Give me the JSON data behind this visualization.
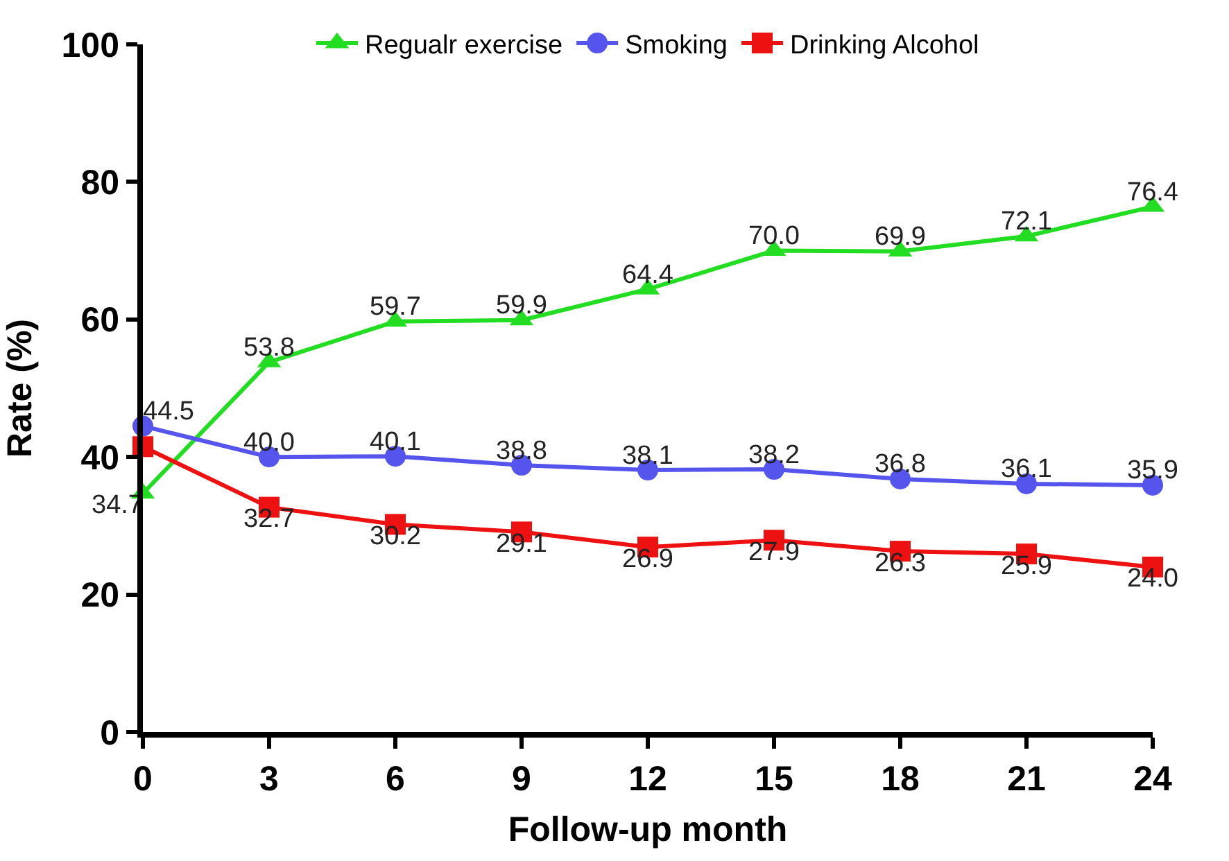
{
  "chart_data": {
    "type": "line",
    "xlabel": "Follow-up month",
    "ylabel": "Rate (%)",
    "x": [
      0,
      3,
      6,
      9,
      12,
      15,
      18,
      21,
      24
    ],
    "series": [
      {
        "name": "Regualr exercise",
        "color": "#22dd22",
        "marker": "triangle",
        "values": [
          34.7,
          53.8,
          59.7,
          59.9,
          64.4,
          70.0,
          69.9,
          72.1,
          76.4
        ],
        "value_labels": [
          "34.7",
          "53.8",
          "59.7",
          "59.9",
          "64.4",
          "70.0",
          "69.9",
          "72.1",
          "76.4"
        ]
      },
      {
        "name": "Smoking",
        "color": "#5555ee",
        "marker": "circle",
        "values": [
          44.5,
          40.0,
          40.1,
          38.8,
          38.1,
          38.2,
          36.8,
          36.1,
          35.9
        ],
        "value_labels": [
          "44.5",
          "40.0",
          "40.1",
          "38.8",
          "38.1",
          "38.2",
          "36.8",
          "36.1",
          "35.9"
        ]
      },
      {
        "name": "Drinking Alcohol",
        "color": "#ee1111",
        "marker": "square",
        "values": [
          41.5,
          32.7,
          30.2,
          29.1,
          26.9,
          27.9,
          26.3,
          25.9,
          24.0
        ],
        "value_labels": [
          null,
          "32.7",
          "30.2",
          "29.1",
          "26.9",
          "27.9",
          "26.3",
          "25.9",
          "24.0"
        ]
      }
    ],
    "xlim": [
      0,
      24
    ],
    "xticks": [
      0,
      3,
      6,
      9,
      12,
      15,
      18,
      21,
      24
    ],
    "ylim": [
      0,
      100
    ],
    "yticks": [
      0,
      20,
      40,
      60,
      80,
      100
    ],
    "legend": "top",
    "line_style": "solid"
  }
}
